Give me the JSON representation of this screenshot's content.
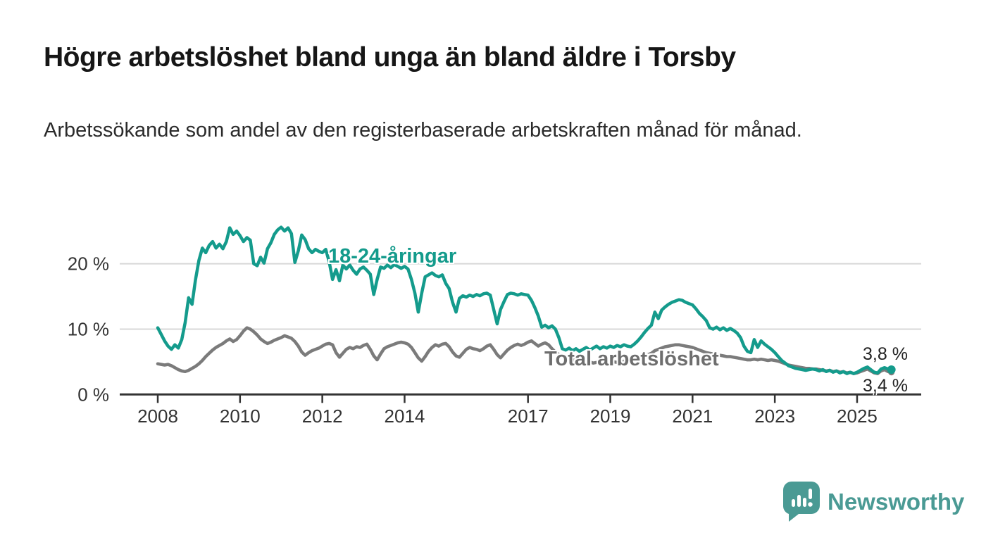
{
  "header": {},
  "chart_data": {
    "type": "line",
    "title": "Högre arbetslöshet bland unga än bland äldre i Torsby",
    "subtitle": "Arbetssökande som andel av den registerbaserade arbetskraften månad för månad.",
    "x_start_year": 2008,
    "x_step_months": 1,
    "x_ticks": [
      {
        "value": 2008,
        "label": "2008"
      },
      {
        "value": 2010,
        "label": "2010"
      },
      {
        "value": 2012,
        "label": "2012"
      },
      {
        "value": 2014,
        "label": "2014"
      },
      {
        "value": 2017,
        "label": "2017"
      },
      {
        "value": 2019,
        "label": "2019"
      },
      {
        "value": 2021,
        "label": "2021"
      },
      {
        "value": 2023,
        "label": "2023"
      },
      {
        "value": 2025,
        "label": "2025"
      }
    ],
    "y_ticks": [
      {
        "value": 0,
        "label": "0 %"
      },
      {
        "value": 10,
        "label": "10 %"
      },
      {
        "value": 20,
        "label": "20 %"
      }
    ],
    "ylim": [
      0,
      27
    ],
    "grid": true,
    "colors": {
      "youth": "#149b8c",
      "total": "#7b7b7b",
      "grid": "#d8d8d8",
      "axis": "#333333"
    },
    "series": [
      {
        "name": "18-24-åringar",
        "end_label": "3,8 %",
        "values": [
          10.2,
          9.2,
          8.2,
          7.4,
          6.9,
          7.6,
          7.1,
          8.4,
          11.0,
          14.8,
          13.8,
          17.5,
          20.5,
          22.4,
          21.7,
          22.8,
          23.4,
          22.4,
          23.0,
          22.3,
          23.4,
          25.5,
          24.5,
          25.0,
          24.3,
          23.4,
          24.0,
          23.6,
          20.0,
          19.7,
          21.0,
          20.1,
          22.3,
          23.2,
          24.5,
          25.2,
          25.6,
          25.0,
          25.5,
          24.6,
          20.2,
          22.0,
          24.4,
          23.7,
          22.3,
          21.7,
          22.2,
          21.9,
          21.7,
          22.2,
          20.3,
          17.6,
          19.1,
          17.4,
          19.8,
          19.2,
          19.8,
          19.0,
          18.4,
          19.2,
          19.5,
          19.0,
          18.4,
          15.3,
          17.6,
          19.5,
          19.3,
          19.8,
          19.4,
          19.9,
          19.6,
          19.3,
          19.6,
          19.2,
          17.6,
          15.5,
          12.6,
          15.5,
          18.0,
          18.3,
          18.6,
          18.2,
          18.0,
          18.3,
          17.0,
          16.2,
          14.1,
          12.6,
          14.7,
          15.1,
          14.9,
          15.2,
          15.0,
          15.3,
          15.1,
          15.4,
          15.5,
          15.2,
          13.0,
          10.8,
          13.0,
          14.2,
          15.3,
          15.5,
          15.4,
          15.2,
          15.4,
          15.3,
          15.2,
          14.4,
          13.3,
          12.0,
          10.3,
          10.6,
          10.2,
          10.5,
          10.0,
          8.7,
          7.0,
          6.8,
          7.1,
          6.7,
          7.0,
          6.6,
          6.9,
          7.2,
          6.8,
          7.1,
          7.4,
          7.0,
          7.3,
          7.1,
          7.4,
          7.2,
          7.5,
          7.3,
          7.6,
          7.4,
          7.3,
          7.7,
          8.2,
          8.8,
          9.5,
          10.1,
          10.6,
          12.6,
          11.6,
          12.9,
          13.4,
          13.8,
          14.1,
          14.3,
          14.5,
          14.4,
          14.1,
          13.9,
          13.7,
          13.1,
          12.4,
          11.9,
          11.3,
          10.2,
          10.0,
          10.3,
          9.9,
          10.2,
          9.8,
          10.1,
          9.8,
          9.4,
          8.7,
          7.4,
          6.6,
          6.4,
          8.4,
          7.2,
          8.2,
          7.7,
          7.3,
          6.9,
          6.4,
          5.8,
          5.2,
          4.8,
          4.4,
          4.2,
          4.0,
          3.9,
          3.8,
          3.7,
          3.8,
          3.9,
          3.8,
          3.6,
          3.8,
          3.5,
          3.7,
          3.4,
          3.6,
          3.3,
          3.5,
          3.2,
          3.4,
          3.2,
          3.4,
          3.7,
          4.0,
          4.2,
          3.8,
          3.4,
          3.3,
          3.9,
          4.1,
          3.9,
          3.8
        ]
      },
      {
        "name": "Total arbetslöshet",
        "end_label": "3,4 %",
        "values": [
          4.7,
          4.6,
          4.5,
          4.6,
          4.4,
          4.1,
          3.8,
          3.6,
          3.5,
          3.7,
          4.0,
          4.3,
          4.7,
          5.2,
          5.8,
          6.3,
          6.8,
          7.2,
          7.5,
          7.8,
          8.2,
          8.5,
          8.1,
          8.4,
          9.0,
          9.7,
          10.2,
          10.0,
          9.6,
          9.1,
          8.5,
          8.1,
          7.8,
          8.0,
          8.3,
          8.5,
          8.7,
          9.0,
          8.8,
          8.6,
          8.1,
          7.4,
          6.5,
          6.0,
          6.4,
          6.7,
          6.9,
          7.1,
          7.4,
          7.7,
          7.8,
          7.6,
          6.4,
          5.7,
          6.3,
          6.9,
          7.2,
          7.0,
          7.3,
          7.2,
          7.5,
          7.7,
          6.9,
          5.9,
          5.3,
          6.2,
          7.0,
          7.3,
          7.5,
          7.7,
          7.9,
          8.0,
          7.9,
          7.7,
          7.2,
          6.4,
          5.6,
          5.1,
          5.8,
          6.6,
          7.2,
          7.6,
          7.4,
          7.7,
          7.8,
          7.3,
          6.5,
          5.9,
          5.7,
          6.3,
          6.9,
          7.2,
          7.0,
          6.9,
          6.7,
          7.0,
          7.4,
          7.6,
          6.9,
          6.1,
          5.6,
          6.2,
          6.8,
          7.2,
          7.5,
          7.7,
          7.5,
          7.7,
          8.0,
          8.2,
          7.8,
          7.4,
          7.7,
          7.9,
          7.6,
          7.0,
          6.5,
          6.1,
          5.8,
          5.6,
          5.5,
          5.3,
          5.2,
          5.0,
          4.9,
          5.1,
          5.0,
          4.8,
          4.9,
          5.1,
          5.0,
          5.2,
          5.1,
          5.0,
          4.9,
          5.0,
          5.1,
          5.2,
          5.1,
          5.3,
          5.5,
          5.7,
          5.9,
          6.1,
          6.3,
          6.7,
          6.9,
          7.1,
          7.3,
          7.4,
          7.5,
          7.6,
          7.6,
          7.5,
          7.4,
          7.3,
          7.2,
          7.0,
          6.8,
          6.6,
          6.4,
          6.3,
          6.2,
          6.1,
          6.0,
          5.9,
          5.8,
          5.8,
          5.7,
          5.6,
          5.5,
          5.4,
          5.3,
          5.3,
          5.4,
          5.3,
          5.4,
          5.3,
          5.2,
          5.3,
          5.2,
          5.1,
          4.9,
          4.7,
          4.5,
          4.4,
          4.3,
          4.2,
          4.1,
          4.0,
          4.0,
          3.9,
          3.9,
          3.8,
          3.7,
          3.6,
          3.7,
          3.5,
          3.6,
          3.4,
          3.5,
          3.3,
          3.4,
          3.2,
          3.3,
          3.5,
          3.7,
          3.9,
          3.6,
          3.3,
          3.2,
          3.6,
          3.8,
          3.5,
          3.4
        ]
      }
    ]
  },
  "footer": {
    "brand": "Newsworthy",
    "brand_color": "#4a9a94"
  }
}
